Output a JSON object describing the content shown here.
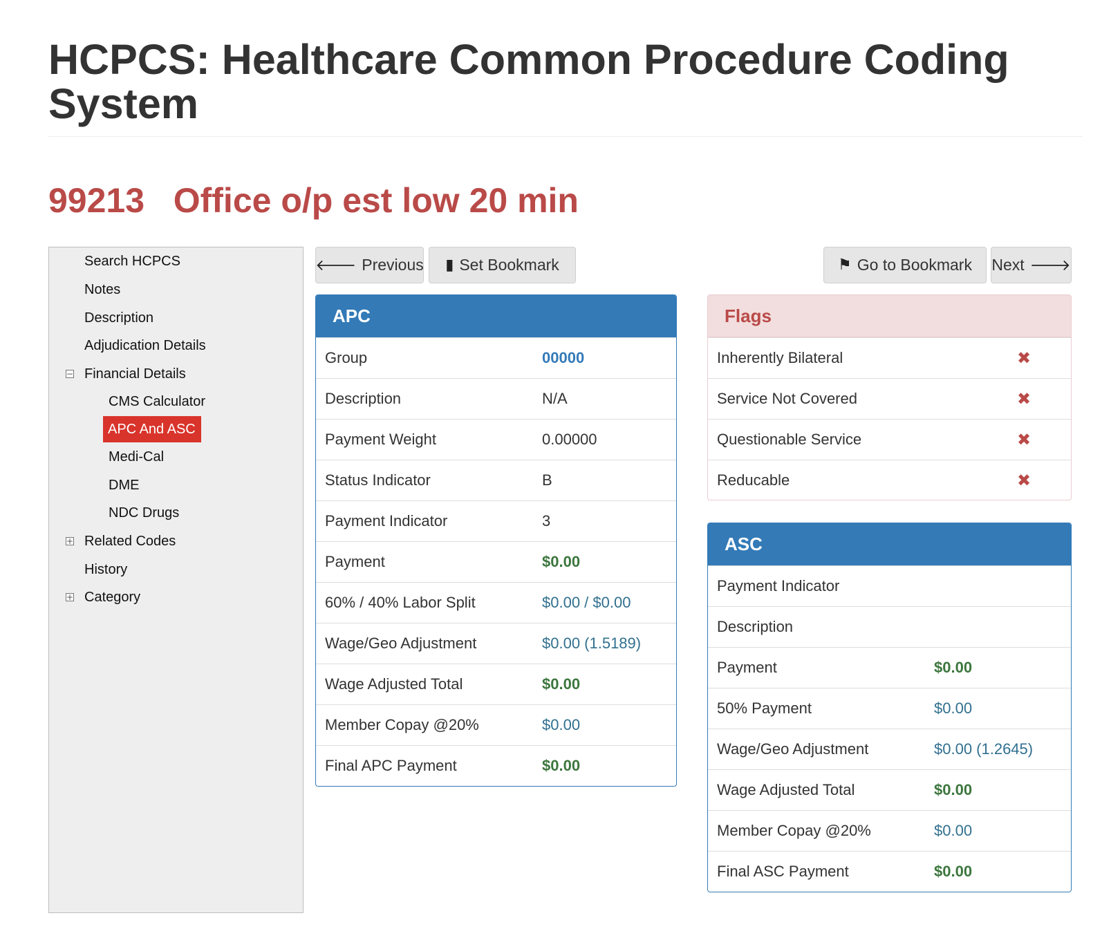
{
  "page": {
    "title": "HCPCS: Healthcare Common Procedure Coding System",
    "code": "99213",
    "code_description": "Office o/p est low 20 min"
  },
  "sidebar": {
    "items": [
      {
        "label": "Search HCPCS"
      },
      {
        "label": "Notes"
      },
      {
        "label": "Description"
      },
      {
        "label": "Adjudication Details"
      },
      {
        "label": "Financial Details",
        "toggle": "⊟"
      },
      {
        "label": "CMS Calculator"
      },
      {
        "label": "APC And ASC",
        "active": true
      },
      {
        "label": "Medi-Cal"
      },
      {
        "label": "DME"
      },
      {
        "label": "NDC Drugs"
      },
      {
        "label": "Related Codes",
        "toggle": "⊞"
      },
      {
        "label": "History"
      },
      {
        "label": "Category",
        "toggle": "⊞"
      }
    ]
  },
  "toolbar": {
    "previous_label": "Previous",
    "previous_icon": "arrow-left-icon",
    "set_bookmark_label": "Set Bookmark",
    "set_bookmark_icon": "book-icon",
    "go_to_bookmark_label": "Go to Bookmark",
    "go_to_bookmark_icon": "bookmark-icon",
    "next_label": "Next",
    "next_icon": "arrow-right-icon"
  },
  "apc": {
    "title": "APC",
    "rows": [
      {
        "label": "Group",
        "value": "00000"
      },
      {
        "label": "Description",
        "value": "N/A"
      },
      {
        "label": "Payment Weight",
        "value": "0.00000"
      },
      {
        "label": "Status Indicator",
        "value": "B"
      },
      {
        "label": "Payment Indicator",
        "value": "3"
      },
      {
        "label": "Payment",
        "value": "$0.00"
      },
      {
        "label": "60% / 40% Labor Split",
        "value": "$0.00 / $0.00"
      },
      {
        "label": "Wage/Geo Adjustment",
        "value": "$0.00 (1.5189)"
      },
      {
        "label": "Wage Adjusted Total",
        "value": "$0.00"
      },
      {
        "label": "Member Copay @20%",
        "value": "$0.00"
      },
      {
        "label": "Final APC Payment",
        "value": "$0.00"
      }
    ]
  },
  "flags": {
    "title": "Flags",
    "rows": [
      {
        "label": "Inherently Bilateral",
        "value": "✖",
        "icon": "x-icon"
      },
      {
        "label": "Service Not Covered",
        "value": "✖",
        "icon": "x-icon"
      },
      {
        "label": "Questionable Service",
        "value": "✖",
        "icon": "x-icon"
      },
      {
        "label": "Reducable",
        "value": "✖",
        "icon": "x-icon"
      }
    ]
  },
  "asc": {
    "title": "ASC",
    "rows": [
      {
        "label": "Payment Indicator",
        "value": ""
      },
      {
        "label": "Description",
        "value": ""
      },
      {
        "label": "Payment",
        "value": "$0.00"
      },
      {
        "label": "50% Payment",
        "value": "$0.00"
      },
      {
        "label": "Wage/Geo Adjustment",
        "value": "$0.00 (1.2645)"
      },
      {
        "label": "Wage Adjusted Total",
        "value": "$0.00"
      },
      {
        "label": "Member Copay @20%",
        "value": "$0.00"
      },
      {
        "label": "Final ASC Payment",
        "value": "$0.00"
      }
    ]
  },
  "colors": {
    "primary": "#337ab7",
    "danger": "#b94a48",
    "active_nav": "#d9342b",
    "green": "#3c763d",
    "info_blue": "#31708f"
  }
}
